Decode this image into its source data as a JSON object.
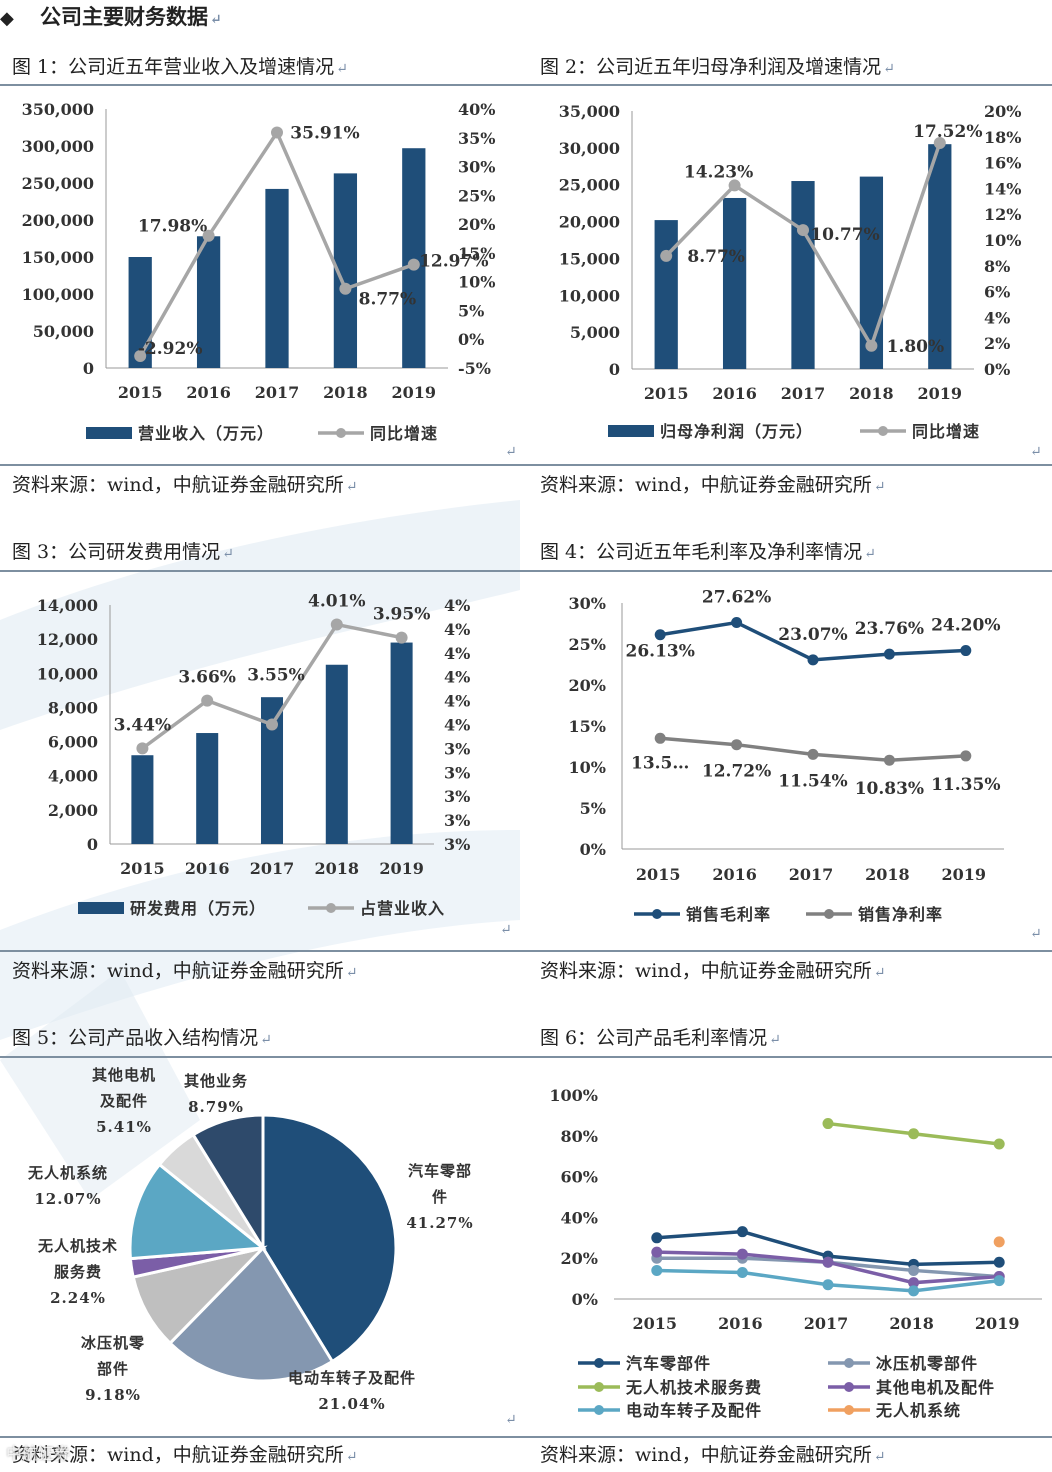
{
  "header": {
    "bullet": "◆",
    "title": "公司主要财务数据"
  },
  "source_text": "资料来源：wind，中航证券金融研究所",
  "watermark": "中航证券",
  "colors": {
    "navy": "#1f4e79",
    "gray": "#a6a6a6",
    "rule": "#7d8fa0"
  },
  "figures": [
    {
      "title": "图 1：公司近五年营业收入及增速情况"
    },
    {
      "title": "图 2：公司近五年归母净利润及增速情况"
    },
    {
      "title": "图 3：公司研发费用情况"
    },
    {
      "title": "图 4：公司近五年毛利率及净利率情况"
    },
    {
      "title": "图 5：公司产品收入结构情况"
    },
    {
      "title": "图 6：公司产品毛利率情况"
    }
  ],
  "chart_data": [
    {
      "type": "bar",
      "id": "fig1",
      "categories": [
        "2015",
        "2016",
        "2017",
        "2018",
        "2019"
      ],
      "series": [
        {
          "name": "营业收入（万元）",
          "axis": "left",
          "type": "bar",
          "values": [
            150000,
            178000,
            242000,
            263000,
            297000
          ]
        },
        {
          "name": "同比增速",
          "axis": "right",
          "type": "line",
          "values": [
            -2.92,
            17.98,
            35.91,
            8.77,
            12.97
          ],
          "labels": [
            "-2.92%",
            "17.98%",
            "35.91%",
            "8.77%",
            "12.97%"
          ]
        }
      ],
      "y_left": {
        "min": 0,
        "max": 350000,
        "ticks": [
          "0",
          "50,000",
          "100,000",
          "150,000",
          "200,000",
          "250,000",
          "300,000",
          "350,000"
        ]
      },
      "y_right": {
        "min": -5,
        "max": 40,
        "ticks": [
          "-5%",
          "0%",
          "5%",
          "10%",
          "15%",
          "20%",
          "25%",
          "30%",
          "35%",
          "40%"
        ]
      }
    },
    {
      "type": "bar",
      "id": "fig2",
      "categories": [
        "2015",
        "2016",
        "2017",
        "2018",
        "2019"
      ],
      "series": [
        {
          "name": "归母净利润（万元）",
          "axis": "left",
          "type": "bar",
          "values": [
            20200,
            23200,
            25500,
            26100,
            30500
          ]
        },
        {
          "name": "同比增速",
          "axis": "right",
          "type": "line",
          "values": [
            8.77,
            14.23,
            10.77,
            1.8,
            17.52
          ],
          "labels": [
            "8.77%",
            "14.23%",
            "10.77%",
            "1.80%",
            "17.52%"
          ]
        }
      ],
      "y_left": {
        "min": 0,
        "max": 35000,
        "ticks": [
          "0",
          "5,000",
          "10,000",
          "15,000",
          "20,000",
          "25,000",
          "30,000",
          "35,000"
        ]
      },
      "y_right": {
        "min": 0,
        "max": 20,
        "ticks": [
          "0%",
          "2%",
          "4%",
          "6%",
          "8%",
          "10%",
          "12%",
          "14%",
          "16%",
          "18%",
          "20%"
        ]
      }
    },
    {
      "type": "bar",
      "id": "fig3",
      "categories": [
        "2015",
        "2016",
        "2017",
        "2018",
        "2019"
      ],
      "series": [
        {
          "name": "研发费用（万元）",
          "axis": "left",
          "type": "bar",
          "values": [
            5200,
            6500,
            8600,
            10500,
            11800
          ]
        },
        {
          "name": "占营业收入",
          "axis": "right",
          "type": "line",
          "values": [
            3.44,
            3.66,
            3.55,
            4.01,
            3.95
          ],
          "labels": [
            "3.44%",
            "3.66%",
            "3.55%",
            "4.01%",
            "3.95%"
          ]
        }
      ],
      "y_left": {
        "min": 0,
        "max": 14000,
        "ticks": [
          "0",
          "2,000",
          "4,000",
          "6,000",
          "8,000",
          "10,000",
          "12,000",
          "14,000"
        ]
      },
      "y_right": {
        "min": 3.0,
        "max": 4.1,
        "ticks": [
          "3%",
          "3%",
          "3%",
          "3%",
          "3%",
          "4%",
          "4%",
          "4%",
          "4%",
          "4%",
          "4%"
        ]
      }
    },
    {
      "type": "line",
      "id": "fig4",
      "categories": [
        "2015",
        "2016",
        "2017",
        "2018",
        "2019"
      ],
      "series": [
        {
          "name": "销售毛利率",
          "values": [
            26.13,
            27.62,
            23.07,
            23.76,
            24.2
          ],
          "labels": [
            "26.13%",
            "27.62%",
            "23.07%",
            "23.76%",
            "24.20%"
          ]
        },
        {
          "name": "销售净利率",
          "values": [
            13.5,
            12.72,
            11.54,
            10.83,
            11.35
          ],
          "labels": [
            "13.5…",
            "12.72%",
            "11.54%",
            "10.83%",
            "11.35%"
          ]
        }
      ],
      "ylim": [
        0,
        30
      ],
      "yticks": [
        "0%",
        "5%",
        "10%",
        "15%",
        "20%",
        "25%",
        "30%"
      ]
    },
    {
      "type": "pie",
      "id": "fig5",
      "slices": [
        {
          "name": "汽车零部件",
          "lines": [
            "汽车零部",
            "件"
          ],
          "percent": 41.27,
          "label": "41.27%",
          "color": "#1f4e79"
        },
        {
          "name": "电动车转子及配件",
          "lines": [
            "电动车转子及配件"
          ],
          "percent": 21.04,
          "label": "21.04%",
          "color": "#8497b0"
        },
        {
          "name": "冰压机零部件",
          "lines": [
            "冰压机零",
            "部件"
          ],
          "percent": 9.18,
          "label": "9.18%",
          "color": "#bfbfbf"
        },
        {
          "name": "无人机技术服务费",
          "lines": [
            "无人机技术",
            "服务费"
          ],
          "percent": 2.24,
          "label": "2.24%",
          "color": "#7b5ea7"
        },
        {
          "name": "无人机系统",
          "lines": [
            "无人机系统"
          ],
          "percent": 12.07,
          "label": "12.07%",
          "color": "#5ba7c4"
        },
        {
          "name": "其他电机及配件",
          "lines": [
            "其他电机",
            "及配件"
          ],
          "percent": 5.41,
          "label": "5.41%",
          "color": "#d9d9d9"
        },
        {
          "name": "其他业务",
          "lines": [
            "其他业务"
          ],
          "percent": 8.79,
          "label": "8.79%",
          "color": "#2e4a6b"
        }
      ]
    },
    {
      "type": "line",
      "id": "fig6",
      "categories": [
        "2015",
        "2016",
        "2017",
        "2018",
        "2019"
      ],
      "series": [
        {
          "name": "汽车零部件",
          "color": "#1f4e79",
          "values": [
            30,
            33,
            21,
            17,
            18
          ]
        },
        {
          "name": "冰压机零部件",
          "color": "#8497b0",
          "values": [
            20,
            20,
            18,
            14,
            11
          ]
        },
        {
          "name": "无人机技术服务费",
          "color": "#9bbb59",
          "values": [
            null,
            null,
            86,
            81,
            76
          ]
        },
        {
          "name": "其他电机及配件",
          "color": "#7b5ea7",
          "values": [
            23,
            22,
            18,
            8,
            11
          ]
        },
        {
          "name": "电动车转子及配件",
          "color": "#5ba7c4",
          "values": [
            14,
            13,
            7,
            4,
            9
          ]
        },
        {
          "name": "无人机系统",
          "color": "#f0a060",
          "values": [
            null,
            null,
            null,
            null,
            28
          ]
        }
      ],
      "ylim": [
        0,
        100
      ],
      "yticks": [
        "0%",
        "20%",
        "40%",
        "60%",
        "80%",
        "100%"
      ]
    }
  ]
}
